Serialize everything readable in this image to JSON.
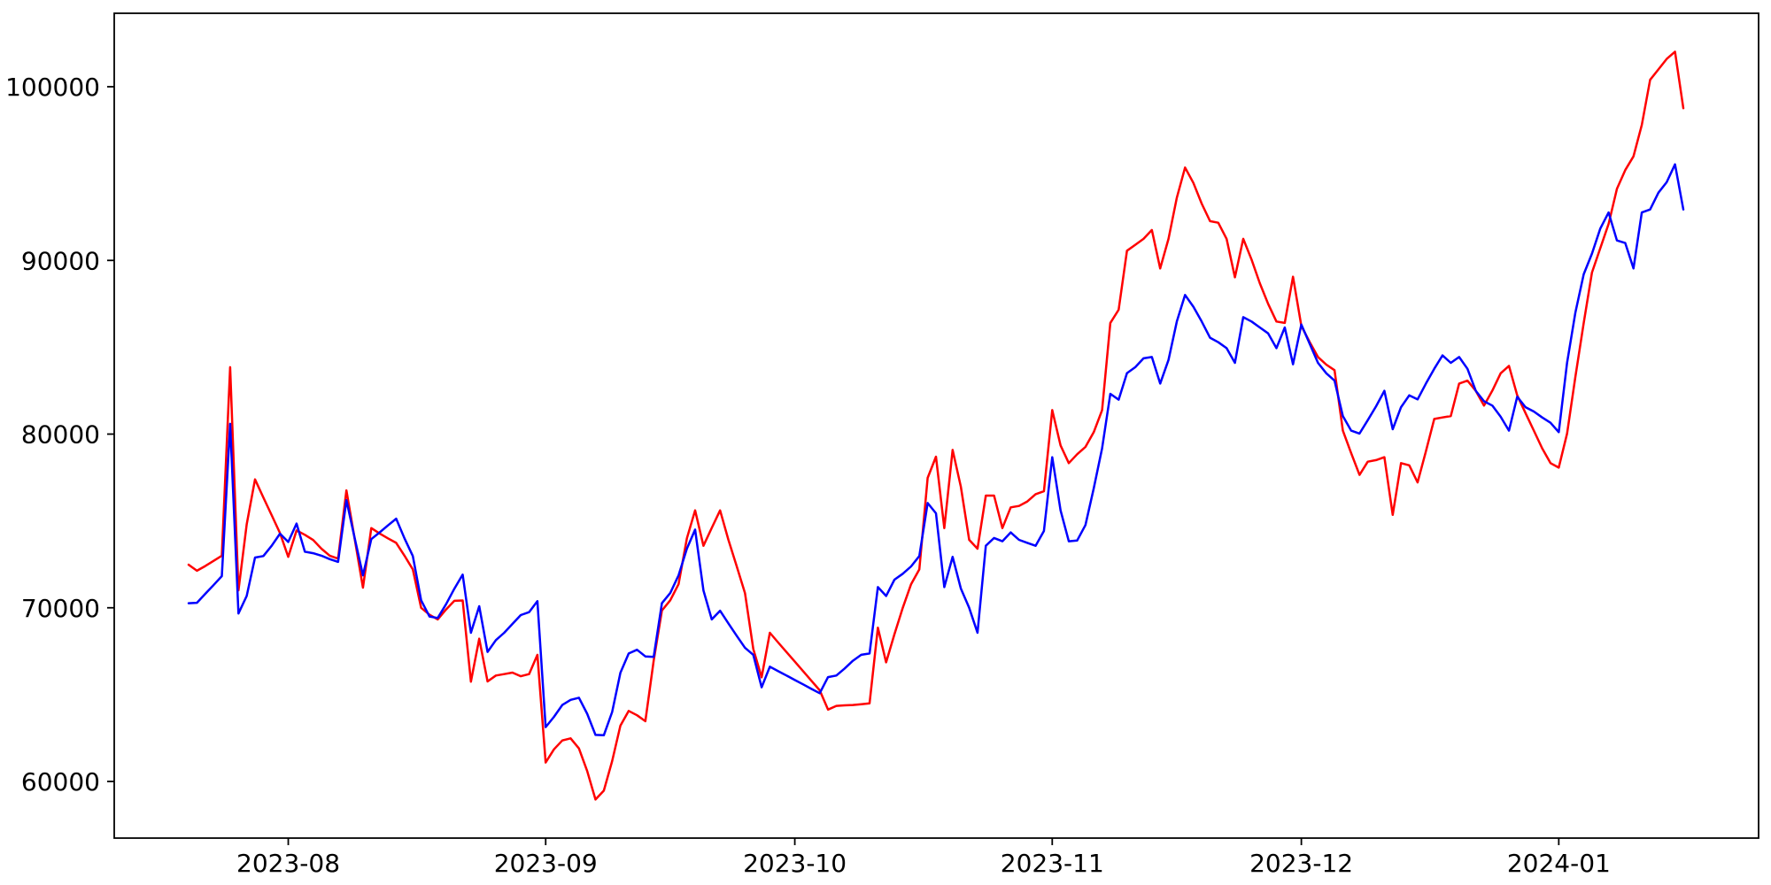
{
  "chart_data": {
    "type": "line",
    "title": "",
    "xlabel": "",
    "ylabel": "",
    "grid": false,
    "legend": null,
    "background_color": "#ffffff",
    "spine_color": "#000000",
    "x_axis": {
      "start_date": "2023-07-20",
      "end_date": "2024-01-16",
      "frequency": "daily",
      "tick_labels": [
        "2023-08",
        "2023-09",
        "2023-10",
        "2023-11",
        "2023-12",
        "2024-01"
      ],
      "tick_indices": [
        12,
        43,
        73,
        104,
        134,
        165
      ]
    },
    "y_axis": {
      "tick_labels": [
        "60000",
        "70000",
        "80000",
        "90000",
        "100000"
      ],
      "tick_values": [
        60000,
        70000,
        80000,
        90000,
        100000
      ],
      "range": [
        56700,
        104250
      ]
    },
    "series": [
      {
        "name": "red-series",
        "color": "#ff0000",
        "values": [
          72480,
          72130,
          72400,
          72700,
          73000,
          83850,
          71000,
          74800,
          77390,
          76350,
          75330,
          74300,
          72930,
          74450,
          74200,
          73900,
          73400,
          73000,
          72830,
          76760,
          73950,
          71160,
          74590,
          74280,
          74000,
          73740,
          73000,
          72210,
          70000,
          69600,
          69330,
          69900,
          70400,
          70420,
          65750,
          68220,
          65760,
          66100,
          66180,
          66270,
          66060,
          66180,
          67290,
          61090,
          61850,
          62360,
          62480,
          61900,
          60600,
          58960,
          59470,
          61170,
          63210,
          64060,
          63810,
          63470,
          66950,
          69840,
          70430,
          71360,
          74000,
          75610,
          73570,
          74600,
          75610,
          73910,
          72400,
          70850,
          67630,
          66000,
          68560,
          68000,
          67450,
          66900,
          66350,
          65800,
          65250,
          64140,
          64350,
          64380,
          64400,
          64450,
          64500,
          68850,
          66860,
          68480,
          70000,
          71360,
          72210,
          77480,
          78700,
          74590,
          79090,
          76970,
          73910,
          73400,
          76460,
          76460,
          74590,
          75780,
          75860,
          76120,
          76540,
          76710,
          81380,
          79350,
          78330,
          78840,
          79260,
          80110,
          81380,
          86400,
          87160,
          90560,
          90900,
          91240,
          91750,
          89540,
          91240,
          93610,
          95350,
          94460,
          93270,
          92260,
          92170,
          91240,
          89030,
          91240,
          90050,
          88690,
          87500,
          86480,
          86400,
          89060,
          86230,
          85300,
          84440,
          84000,
          83680,
          80200,
          78900,
          77650,
          78410,
          78500,
          78670,
          75350,
          78330,
          78200,
          77220,
          79010,
          80870,
          80960,
          81040,
          82910,
          83080,
          82490,
          81640,
          82500,
          83500,
          83930,
          82230,
          81210,
          80200,
          79180,
          78330,
          78070,
          80030,
          83300,
          86400,
          89300,
          90700,
          92100,
          94120,
          95200,
          95990,
          97800,
          100400,
          101000,
          101600,
          102020,
          98760
        ]
      },
      {
        "name": "blue-series",
        "color": "#0000ff",
        "values": [
          70260,
          70290,
          70800,
          71300,
          71820,
          80590,
          69670,
          70680,
          72890,
          72980,
          73570,
          74270,
          73790,
          74850,
          73230,
          73140,
          73000,
          72800,
          72640,
          76200,
          74000,
          71870,
          73950,
          74340,
          74740,
          75130,
          74000,
          72980,
          70430,
          69500,
          69410,
          70200,
          71100,
          71910,
          68560,
          70090,
          67460,
          68140,
          68560,
          69070,
          69580,
          69750,
          70380,
          63130,
          63720,
          64400,
          64700,
          64820,
          63900,
          62680,
          62660,
          64000,
          66250,
          67370,
          67580,
          67200,
          67170,
          70260,
          70850,
          71870,
          73400,
          74500,
          71000,
          69330,
          69830,
          69100,
          68390,
          67700,
          67290,
          65420,
          66610,
          66350,
          66100,
          65840,
          65590,
          65330,
          65080,
          66010,
          66100,
          66500,
          66950,
          67290,
          67370,
          71190,
          70680,
          71620,
          71960,
          72380,
          72980,
          76030,
          75440,
          71190,
          72930,
          71110,
          70000,
          68560,
          73570,
          74020,
          73830,
          74340,
          73910,
          73740,
          73570,
          74420,
          78670,
          75610,
          73830,
          73870,
          74760,
          76880,
          79180,
          82320,
          81980,
          83510,
          83850,
          84360,
          84440,
          82910,
          84270,
          86480,
          88010,
          87330,
          86480,
          85550,
          85290,
          84950,
          84100,
          86730,
          86480,
          86140,
          85800,
          84950,
          86140,
          84020,
          86310,
          85200,
          84100,
          83500,
          83080,
          81040,
          80200,
          80030,
          80800,
          81600,
          82490,
          80280,
          81550,
          82230,
          82000,
          82910,
          83760,
          84530,
          84100,
          84440,
          83760,
          82490,
          81890,
          81640,
          81000,
          80200,
          82150,
          81550,
          81300,
          80960,
          80650,
          80110,
          84100,
          87000,
          89200,
          90390,
          91830,
          92760,
          91150,
          91000,
          89540,
          92760,
          92930,
          93900,
          94500,
          95530,
          92930
        ]
      }
    ]
  }
}
